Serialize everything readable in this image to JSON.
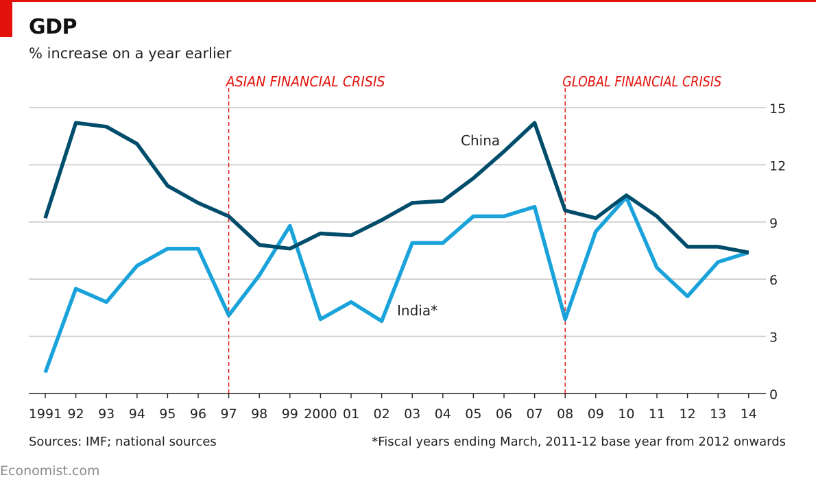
{
  "header": {
    "title": "GDP",
    "subtitle": "% increase on a year earlier"
  },
  "footer": {
    "source": "Sources: IMF; national sources",
    "footnote": "*Fiscal years ending March, 2011-12 base year from 2012 onwards",
    "brand": "Economist.com"
  },
  "colors": {
    "accent": "#e3120b",
    "china": "#004d6b",
    "india": "#1aa3da",
    "grid": "#c8c8c8",
    "annotation": "#e3120b"
  },
  "chart_data": {
    "type": "line",
    "title": "GDP",
    "ylabel": "% increase on a year earlier",
    "xlabel": "",
    "ylim": [
      0,
      15
    ],
    "yticks": [
      0,
      3,
      6,
      9,
      12,
      15
    ],
    "grid": true,
    "categories": [
      "1991",
      "92",
      "93",
      "94",
      "95",
      "96",
      "97",
      "98",
      "99",
      "2000",
      "01",
      "02",
      "03",
      "04",
      "05",
      "06",
      "07",
      "08",
      "09",
      "10",
      "11",
      "12",
      "13",
      "14"
    ],
    "series": [
      {
        "name": "China",
        "label": "China",
        "color": "#004d6b",
        "values": [
          9.2,
          14.2,
          14.0,
          13.1,
          10.9,
          10.0,
          9.3,
          7.8,
          7.6,
          8.4,
          8.3,
          9.1,
          10.0,
          10.1,
          11.3,
          12.7,
          14.2,
          9.6,
          9.2,
          10.4,
          9.3,
          7.7,
          7.7,
          7.4
        ]
      },
      {
        "name": "India*",
        "label": "India*",
        "color": "#1aa3da",
        "values": [
          1.1,
          5.5,
          4.8,
          6.7,
          7.6,
          7.6,
          4.1,
          6.2,
          8.8,
          3.9,
          4.8,
          3.8,
          7.9,
          7.9,
          9.3,
          9.3,
          9.8,
          3.9,
          8.5,
          10.3,
          6.6,
          5.1,
          6.9,
          7.4
        ]
      }
    ],
    "annotations": [
      {
        "label": "ASIAN FINANCIAL CRISIS",
        "category": "97"
      },
      {
        "label": "GLOBAL FINANCIAL CRISIS",
        "category": "08"
      }
    ]
  }
}
